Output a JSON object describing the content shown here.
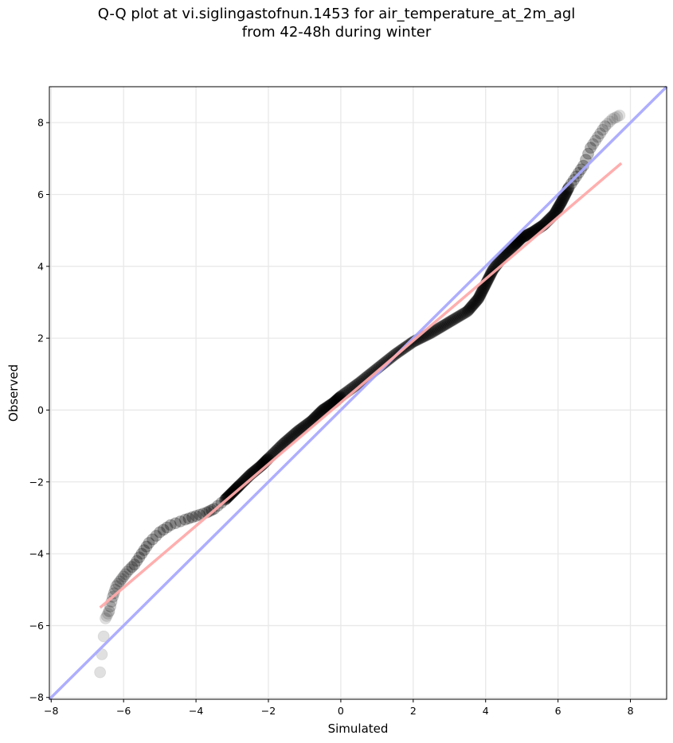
{
  "chart_data": {
    "type": "scatter",
    "title_lines": [
      "Q-Q plot at vi.siglingastofnun.1453 for air_temperature_at_2m_agl",
      "from 42-48h during winter"
    ],
    "xlabel": "Simulated",
    "ylabel": "Observed",
    "xlim": [
      -8.05,
      9.0
    ],
    "ylim": [
      -8.05,
      9.0
    ],
    "xticks": [
      -8,
      -6,
      -4,
      -2,
      0,
      2,
      4,
      6,
      8
    ],
    "yticks": [
      -8,
      -6,
      -4,
      -2,
      0,
      2,
      4,
      6,
      8
    ],
    "tick_labels": {
      "x": [
        "−8",
        "−6",
        "−4",
        "−2",
        "0",
        "2",
        "4",
        "6",
        "8"
      ],
      "y": [
        "−8",
        "−6",
        "−4",
        "−2",
        "0",
        "2",
        "4",
        "6",
        "8"
      ]
    },
    "grid": true,
    "colors": {
      "points": "#000000",
      "identity_line": "#aaaaff",
      "fit_line": "#ffaaaa",
      "grid": "#e8e8e8"
    },
    "identity_line": {
      "x": [
        -8.05,
        9.0
      ],
      "y": [
        -8.05,
        9.0
      ]
    },
    "fit_line": {
      "x": [
        -6.65,
        7.75
      ],
      "y": [
        -5.5,
        6.87
      ]
    },
    "quantile_curve": {
      "x": [
        -6.65,
        -6.5,
        -6.4,
        -6.3,
        -6.2,
        -6.05,
        -5.9,
        -5.7,
        -5.5,
        -5.3,
        -5.0,
        -4.7,
        -4.3,
        -4.0,
        -3.7,
        -3.5,
        -3.2,
        -3.0,
        -2.8,
        -2.5,
        -2.2,
        -2.0,
        -1.6,
        -1.2,
        -0.8,
        -0.5,
        -0.2,
        0.0,
        0.5,
        1.0,
        1.5,
        2.0,
        2.5,
        3.0,
        3.5,
        3.8,
        4.0,
        4.2,
        4.5,
        4.8,
        5.0,
        5.3,
        5.6,
        5.9,
        6.1,
        6.3,
        6.5,
        6.7,
        6.9,
        7.1,
        7.3,
        7.5,
        7.7
      ],
      "y": [
        -7.3,
        -5.8,
        -5.6,
        -5.2,
        -4.9,
        -4.7,
        -4.5,
        -4.3,
        -4.0,
        -3.7,
        -3.4,
        -3.2,
        -3.05,
        -2.95,
        -2.85,
        -2.75,
        -2.5,
        -2.3,
        -2.1,
        -1.8,
        -1.55,
        -1.35,
        -0.95,
        -0.6,
        -0.3,
        0.0,
        0.2,
        0.38,
        0.75,
        1.15,
        1.55,
        1.9,
        2.15,
        2.45,
        2.75,
        3.1,
        3.5,
        3.9,
        4.3,
        4.6,
        4.8,
        4.95,
        5.15,
        5.45,
        5.8,
        6.2,
        6.5,
        6.8,
        7.3,
        7.6,
        7.9,
        8.1,
        8.2
      ]
    }
  }
}
